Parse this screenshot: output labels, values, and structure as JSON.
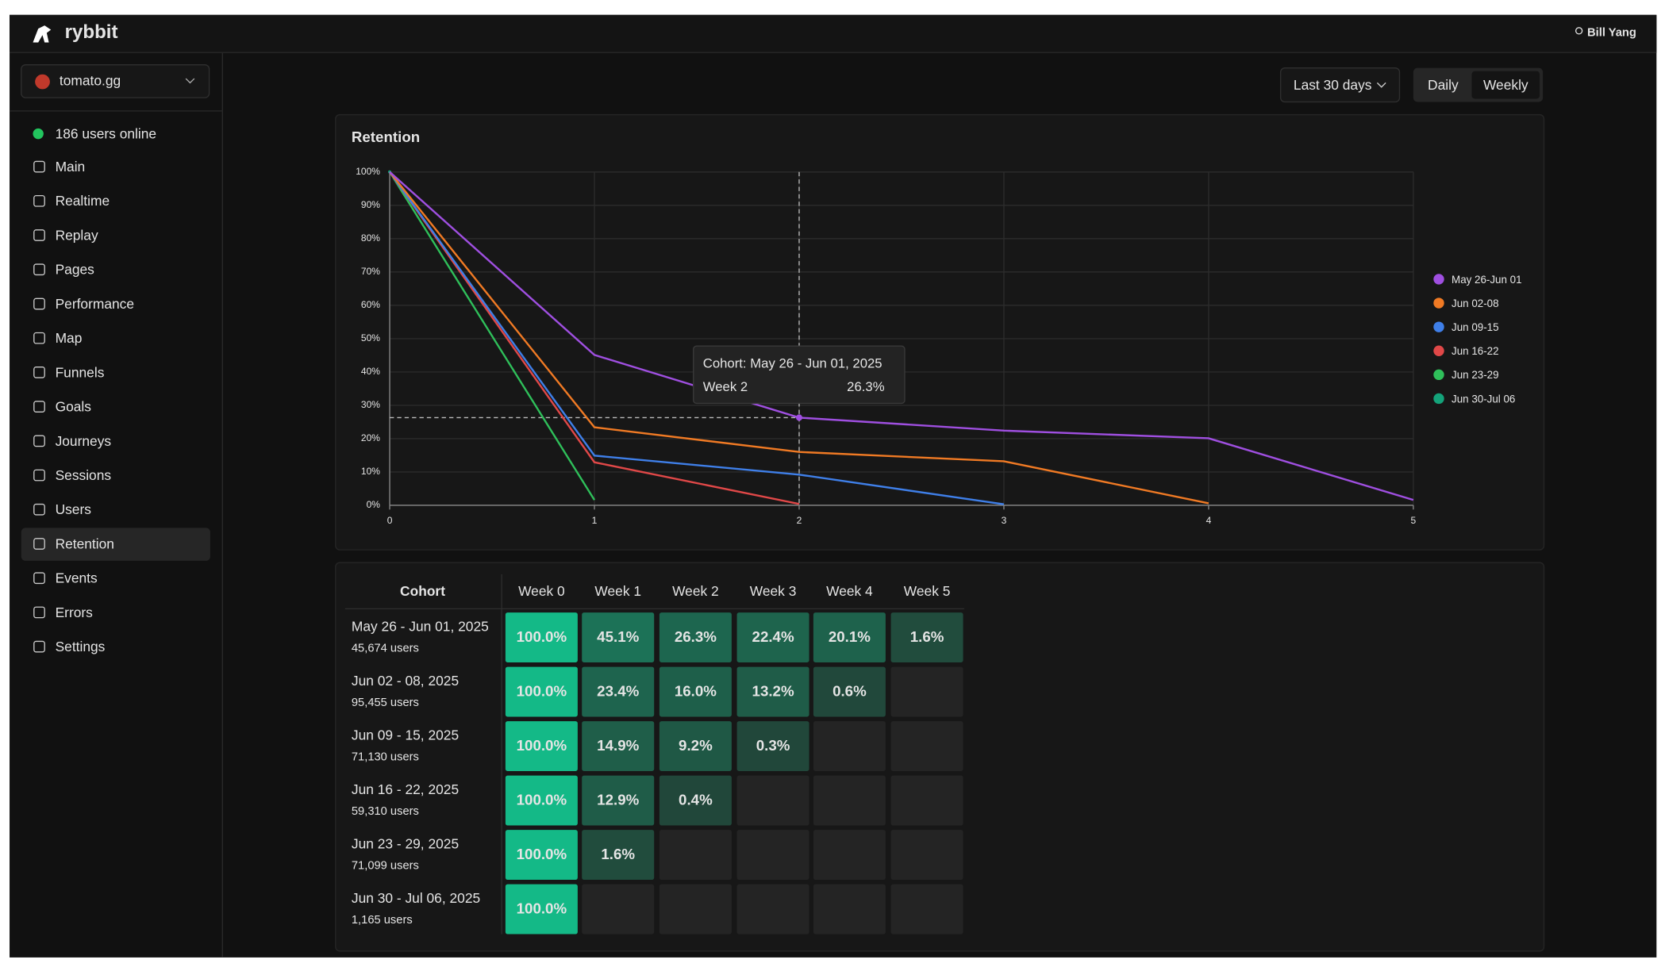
{
  "header": {
    "brand": "rybbit",
    "user": "Bill Yang"
  },
  "sidebar": {
    "site": "tomato.gg",
    "online": "186 users online",
    "nav": [
      "Main",
      "Realtime",
      "Replay",
      "Pages",
      "Performance",
      "Map",
      "Funnels",
      "Goals",
      "Journeys",
      "Sessions",
      "Users",
      "Retention",
      "Events",
      "Errors",
      "Settings"
    ]
  },
  "toolbar": {
    "range": "Last 30 days",
    "modes": [
      "Daily",
      "Weekly"
    ]
  },
  "chart_data": {
    "type": "line",
    "title": "Retention",
    "x": [
      0,
      1,
      2,
      3,
      4,
      5
    ],
    "xlim": [
      0,
      5
    ],
    "xticks": [
      0,
      1,
      2,
      3,
      4,
      5
    ],
    "ylim": [
      0,
      100
    ],
    "yticks": [
      {
        "value": 0,
        "label": "0%"
      },
      {
        "value": 10,
        "label": "10%"
      },
      {
        "value": 20,
        "label": "20%"
      },
      {
        "value": 30,
        "label": "30%"
      },
      {
        "value": 40,
        "label": "40%"
      },
      {
        "value": 50,
        "label": "50%"
      },
      {
        "value": 60,
        "label": "60%"
      },
      {
        "value": 70,
        "label": "70%"
      },
      {
        "value": 80,
        "label": "80%"
      },
      {
        "value": 90,
        "label": "90%"
      },
      {
        "value": 100,
        "label": "100%"
      }
    ],
    "grid": true,
    "legend": "right",
    "series": [
      {
        "name": "May 26-Jun 01",
        "color": "#9f4fe0",
        "values": [
          100,
          45.1,
          26.3,
          22.4,
          20.1,
          1.6
        ]
      },
      {
        "name": "Jun 02-08",
        "color": "#f07a24",
        "values": [
          100,
          23.4,
          16.0,
          13.2,
          0.6,
          null
        ]
      },
      {
        "name": "Jun 09-15",
        "color": "#3f7fe8",
        "values": [
          100,
          14.9,
          9.2,
          0.3,
          null,
          null
        ]
      },
      {
        "name": "Jun 16-22",
        "color": "#e04848",
        "values": [
          100,
          12.9,
          0.4,
          null,
          null,
          null
        ]
      },
      {
        "name": "Jun 23-29",
        "color": "#2fbf5a",
        "values": [
          100,
          1.6,
          null,
          null,
          null,
          null
        ]
      },
      {
        "name": "Jun 30-Jul 06",
        "color": "#14a37a",
        "values": [
          100,
          null,
          null,
          null,
          null,
          null
        ]
      }
    ],
    "tooltip": {
      "title": "Cohort: May 26 - Jun 01, 2025",
      "label": "Week 2",
      "value": "26.3%"
    }
  },
  "table": {
    "headers": [
      "Cohort",
      "Week 0",
      "Week 1",
      "Week 2",
      "Week 3",
      "Week 4",
      "Week 5"
    ],
    "rows": [
      {
        "cohort": "May 26 - Jun 01, 2025",
        "users": "45,674 users",
        "cells": [
          "100.0%",
          "45.1%",
          "26.3%",
          "22.4%",
          "20.1%",
          "1.6%"
        ]
      },
      {
        "cohort": "Jun 02 - 08, 2025",
        "users": "95,455 users",
        "cells": [
          "100.0%",
          "23.4%",
          "16.0%",
          "13.2%",
          "0.6%",
          null
        ]
      },
      {
        "cohort": "Jun 09 - 15, 2025",
        "users": "71,130 users",
        "cells": [
          "100.0%",
          "14.9%",
          "9.2%",
          "0.3%",
          null,
          null
        ]
      },
      {
        "cohort": "Jun 16 - 22, 2025",
        "users": "59,310 users",
        "cells": [
          "100.0%",
          "12.9%",
          "0.4%",
          null,
          null,
          null
        ]
      },
      {
        "cohort": "Jun 23 - 29, 2025",
        "users": "71,099 users",
        "cells": [
          "100.0%",
          "1.6%",
          null,
          null,
          null,
          null
        ]
      },
      {
        "cohort": "Jun 30 - Jul 06, 2025",
        "users": "1,165 users",
        "cells": [
          "100.0%",
          null,
          null,
          null,
          null,
          null
        ]
      }
    ]
  }
}
